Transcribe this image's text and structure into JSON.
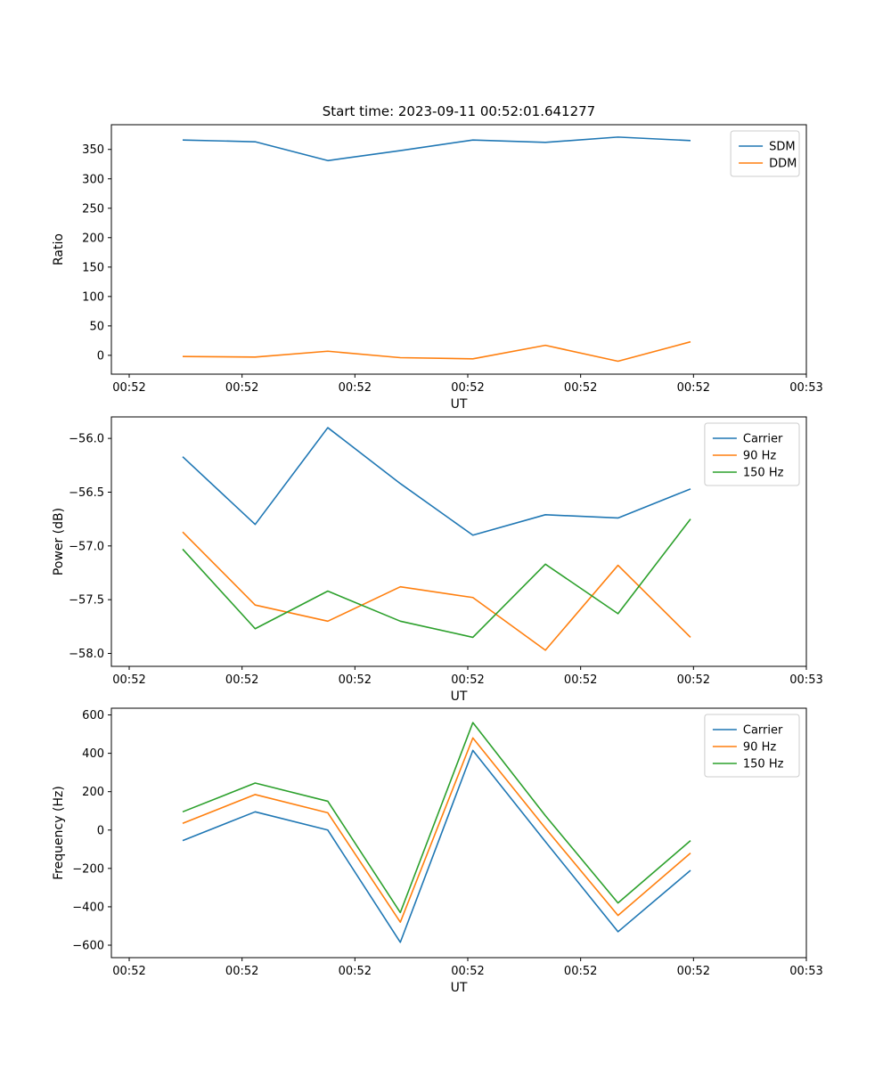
{
  "colors": {
    "blue": "#1f77b4",
    "orange": "#ff7f0e",
    "green": "#2ca02c",
    "axis": "#000000",
    "legend_border": "#cccccc",
    "background": "#ffffff"
  },
  "chart_data": [
    {
      "type": "line",
      "title": "Start time: 2023-09-11 00:52:01.641277",
      "xlabel": "UT",
      "ylabel": "Ratio",
      "xlim": [
        0,
        780
      ],
      "ylim": [
        -32,
        392
      ],
      "x_tick_positions": [
        20,
        146.67,
        273.33,
        400,
        526.67,
        653.33,
        780
      ],
      "x_tick_labels": [
        "00:52",
        "00:52",
        "00:52",
        "00:52",
        "00:52",
        "00:52",
        "00:53"
      ],
      "y_tick_values": [
        0,
        50,
        100,
        150,
        200,
        250,
        300,
        350
      ],
      "y_tick_labels": [
        "0",
        "50",
        "100",
        "150",
        "200",
        "250",
        "300",
        "350"
      ],
      "x": [
        80,
        161.4,
        242.9,
        324.3,
        405.7,
        487.1,
        568.6,
        650
      ],
      "series": [
        {
          "name": "SDM",
          "color": "#1f77b4",
          "values": [
            366,
            363,
            331,
            348,
            366,
            362,
            371,
            365
          ]
        },
        {
          "name": "DDM",
          "color": "#ff7f0e",
          "values": [
            -2,
            -3,
            7,
            -4,
            -6,
            17,
            -10,
            23
          ]
        }
      ],
      "legend_position": "upper right",
      "grid": false
    },
    {
      "type": "line",
      "title": "",
      "xlabel": "UT",
      "ylabel": "Power (dB)",
      "xlim": [
        0,
        780
      ],
      "ylim": [
        -58.12,
        -55.8
      ],
      "x_tick_positions": [
        20,
        146.67,
        273.33,
        400,
        526.67,
        653.33,
        780
      ],
      "x_tick_labels": [
        "00:52",
        "00:52",
        "00:52",
        "00:52",
        "00:52",
        "00:52",
        "00:53"
      ],
      "y_tick_values": [
        -58.0,
        -57.5,
        -57.0,
        -56.5,
        -56.0
      ],
      "y_tick_labels": [
        "−58.0",
        "−57.5",
        "−57.0",
        "−56.5",
        "−56.0"
      ],
      "x": [
        80,
        161.4,
        242.9,
        324.3,
        405.7,
        487.1,
        568.6,
        650
      ],
      "series": [
        {
          "name": "Carrier",
          "color": "#1f77b4",
          "values": [
            -56.17,
            -56.8,
            -55.9,
            -56.42,
            -56.9,
            -56.71,
            -56.74,
            -56.47
          ]
        },
        {
          "name": "90 Hz",
          "color": "#ff7f0e",
          "values": [
            -56.87,
            -57.55,
            -57.7,
            -57.38,
            -57.48,
            -57.97,
            -57.18,
            -57.85
          ]
        },
        {
          "name": "150 Hz",
          "color": "#2ca02c",
          "values": [
            -57.03,
            -57.77,
            -57.42,
            -57.7,
            -57.85,
            -57.17,
            -57.63,
            -56.75
          ]
        }
      ],
      "legend_position": "upper right",
      "grid": false
    },
    {
      "type": "line",
      "title": "",
      "xlabel": "UT",
      "ylabel": "Frequency (Hz)",
      "xlim": [
        0,
        780
      ],
      "ylim": [
        -665,
        635
      ],
      "x_tick_positions": [
        20,
        146.67,
        273.33,
        400,
        526.67,
        653.33,
        780
      ],
      "x_tick_labels": [
        "00:52",
        "00:52",
        "00:52",
        "00:52",
        "00:52",
        "00:52",
        "00:53"
      ],
      "y_tick_values": [
        -600,
        -400,
        -200,
        0,
        200,
        400,
        600
      ],
      "y_tick_labels": [
        "−600",
        "−400",
        "−200",
        "0",
        "200",
        "400",
        "600"
      ],
      "x": [
        80,
        161.4,
        242.9,
        324.3,
        405.7,
        487.1,
        568.6,
        650
      ],
      "series": [
        {
          "name": "Carrier",
          "color": "#1f77b4",
          "values": [
            -55,
            95,
            0,
            -585,
            415,
            -60,
            -530,
            -210
          ]
        },
        {
          "name": "90 Hz",
          "color": "#ff7f0e",
          "values": [
            35,
            185,
            90,
            -480,
            480,
            10,
            -445,
            -120
          ]
        },
        {
          "name": "150 Hz",
          "color": "#2ca02c",
          "values": [
            95,
            245,
            150,
            -430,
            560,
            75,
            -380,
            -55
          ]
        }
      ],
      "legend_position": "upper right",
      "grid": false
    }
  ]
}
